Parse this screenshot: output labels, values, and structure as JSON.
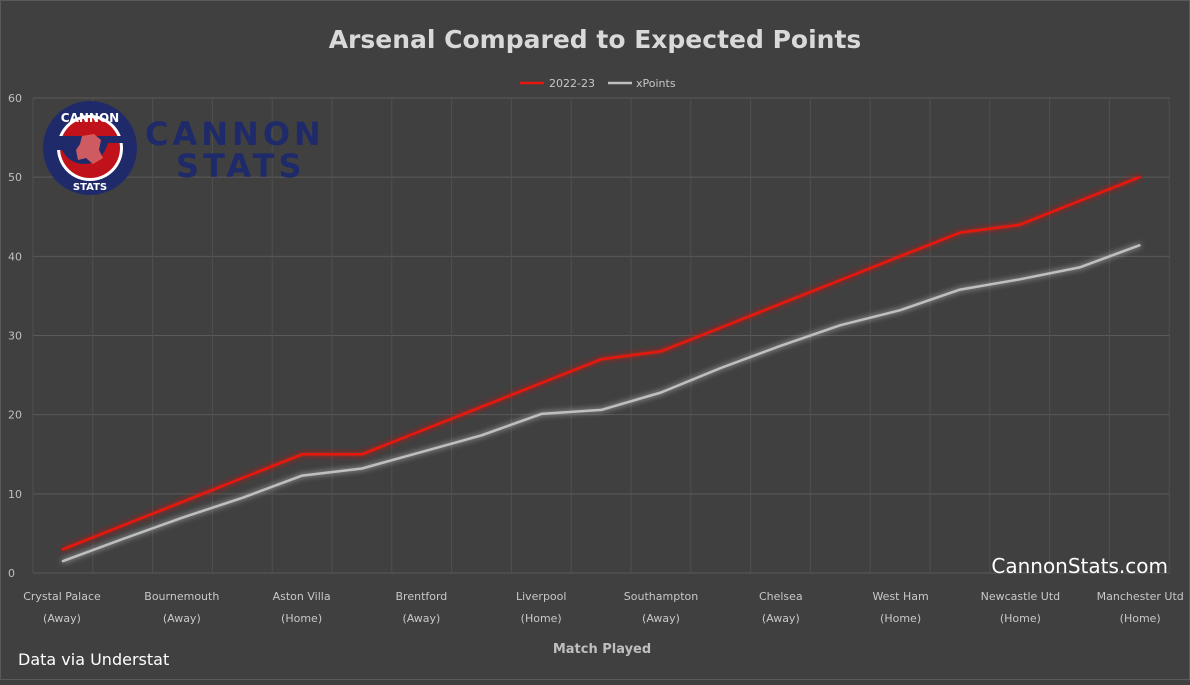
{
  "title": "Arsenal Compared to Expected Points",
  "brand": {
    "logo_ring_top": "CANNON",
    "logo_ring_bottom": "STATS",
    "wordmark_line1": "CANNON",
    "wordmark_line2": "STATS",
    "website": "CannonStats.com",
    "source_note": "Data via Understat"
  },
  "colors": {
    "background": "#404040",
    "series_2022_23": "#e8170f",
    "series_xpoints": "#bfbfbf",
    "grid": "#595959",
    "text_light": "#d9d9d9",
    "logo_navy": "#1f2a6b",
    "logo_red": "#c0121a"
  },
  "chart_data": {
    "type": "line",
    "title": "Arsenal Compared to Expected Points",
    "xlabel": "Match Played",
    "ylabel": "",
    "ylim": [
      0,
      60
    ],
    "y_ticks": [
      0,
      10,
      20,
      30,
      40,
      50,
      60
    ],
    "grid": true,
    "legend_position": "top-center",
    "x_tick_labels": [
      [
        "Crystal Palace",
        "(Away)"
      ],
      [
        "Bournemouth",
        "(Away)"
      ],
      [
        "Aston Villa",
        "(Home)"
      ],
      [
        "Brentford",
        "(Away)"
      ],
      [
        "Liverpool",
        "(Home)"
      ],
      [
        "Southampton",
        "(Away)"
      ],
      [
        "Chelsea",
        "(Away)"
      ],
      [
        "West Ham",
        "(Home)"
      ],
      [
        "Newcastle Utd",
        "(Home)"
      ],
      [
        "Manchester Utd",
        "(Home)"
      ]
    ],
    "series": [
      {
        "name": "2022-23",
        "values": [
          3,
          6,
          9,
          12,
          15,
          15,
          18,
          21,
          24,
          27,
          28,
          31,
          34,
          37,
          40,
          43,
          44,
          47,
          50
        ]
      },
      {
        "name": "xPoints",
        "values": [
          1.5,
          4.3,
          7.0,
          9.5,
          12.3,
          13.2,
          15.3,
          17.4,
          20.1,
          20.6,
          22.8,
          25.9,
          28.7,
          31.3,
          33.2,
          35.8,
          37.1,
          38.6,
          41.4
        ]
      }
    ]
  }
}
